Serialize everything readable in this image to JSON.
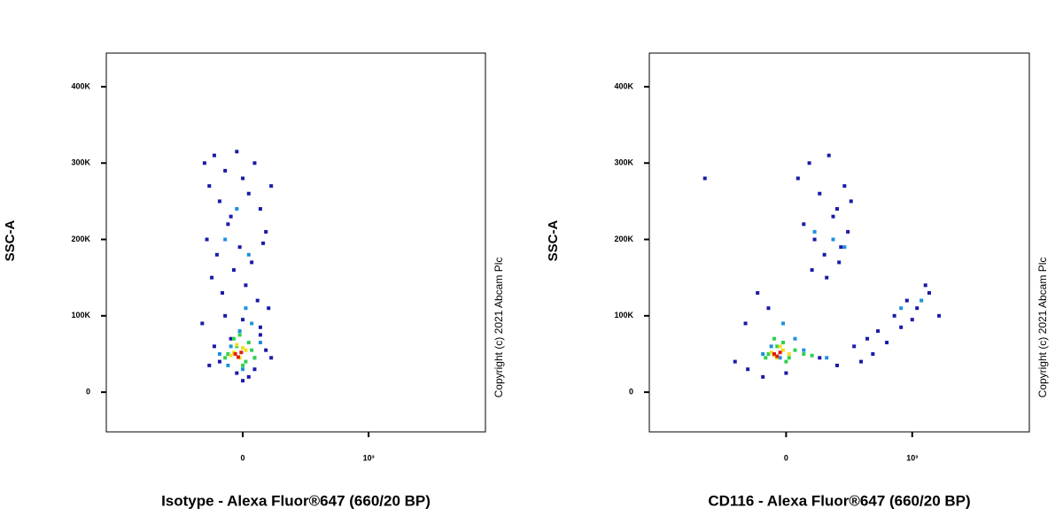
{
  "chart_data": [
    {
      "type": "scatter",
      "xlabel": "Isotype - Alexa Fluor®647 (660/20 BP)",
      "ylabel": "SSC-A",
      "annotation": "Copyright (c) 2021 Abcam Plc",
      "xscale": "asinh",
      "asinh_width": 170,
      "xlim": [
        -1235,
        10000
      ],
      "xticks": [
        0,
        {
          "value": 1000,
          "label": "10³"
        }
      ],
      "ylim": [
        -52000,
        444000
      ],
      "yticks": [
        0,
        {
          "value": 100000,
          "label": "100K"
        },
        {
          "value": 200000,
          "label": "200K"
        },
        {
          "value": 300000,
          "label": "300K"
        },
        {
          "value": 400000,
          "label": "400K"
        }
      ],
      "series": [
        {
          "color": "#1a1aa8",
          "x": [
            -140,
            -120,
            -100,
            -80,
            -60,
            -40,
            -20,
            0,
            20,
            40,
            60,
            80,
            100,
            -130,
            -90,
            -50,
            -10,
            30,
            70,
            -110,
            -70,
            -30,
            10,
            50,
            90,
            -150,
            -60,
            0,
            60,
            -100,
            40,
            -20,
            -80,
            20,
            80,
            -40,
            100,
            -120,
            0,
            60
          ],
          "y": [
            300000,
            270000,
            310000,
            250000,
            290000,
            230000,
            315000,
            280000,
            260000,
            300000,
            240000,
            210000,
            270000,
            200000,
            180000,
            220000,
            190000,
            170000,
            195000,
            150000,
            130000,
            160000,
            140000,
            120000,
            110000,
            90000,
            100000,
            95000,
            85000,
            60000,
            30000,
            25000,
            40000,
            20000,
            55000,
            70000,
            45000,
            35000,
            15000,
            75000
          ]
        },
        {
          "color": "#1e90e0",
          "x": [
            -60,
            -20,
            20,
            -40,
            0,
            40,
            -80,
            60,
            -10,
            30,
            -50,
            10
          ],
          "y": [
            200000,
            240000,
            180000,
            60000,
            30000,
            45000,
            50000,
            65000,
            80000,
            90000,
            35000,
            110000
          ]
        },
        {
          "color": "#30d050",
          "x": [
            -50,
            -20,
            10,
            -30,
            0,
            30,
            -60,
            20,
            -10,
            40
          ],
          "y": [
            50000,
            60000,
            40000,
            70000,
            35000,
            55000,
            45000,
            65000,
            75000,
            45000
          ]
        },
        {
          "color": "#f0e020",
          "x": [
            -30,
            -10,
            10,
            -20,
            0,
            -40
          ],
          "y": [
            52000,
            45000,
            55000,
            62000,
            58000,
            48000
          ]
        },
        {
          "color": "#e02010",
          "x": [
            -25,
            -5,
            -15
          ],
          "y": [
            50000,
            52000,
            46000
          ]
        }
      ]
    },
    {
      "type": "scatter",
      "xlabel": "CD116 - Alexa Fluor®647 (660/20 BP)",
      "ylabel": "SSC-A",
      "annotation": "Copyright (c) 2021 Abcam Plc",
      "xscale": "asinh",
      "asinh_width": 170,
      "xlim": [
        -1235,
        10000
      ],
      "xticks": [
        0,
        {
          "value": 1000,
          "label": "10³"
        }
      ],
      "ylim": [
        -52000,
        444000
      ],
      "yticks": [
        0,
        {
          "value": 100000,
          "label": "100K"
        },
        {
          "value": 200000,
          "label": "200K"
        },
        {
          "value": 300000,
          "label": "300K"
        },
        {
          "value": 400000,
          "label": "400K"
        }
      ],
      "series": [
        {
          "color": "#1a1aa8",
          "x": [
            40,
            80,
            120,
            160,
            200,
            240,
            280,
            60,
            100,
            140,
            180,
            220,
            260,
            90,
            150,
            210,
            -100,
            -150,
            -60,
            300,
            500,
            700,
            900,
            1100,
            1400,
            1700,
            400,
            600,
            800,
            1000,
            1300,
            350,
            450,
            -140,
            -80,
            0,
            120,
            200,
            -200,
            -400
          ],
          "y": [
            280000,
            300000,
            260000,
            310000,
            240000,
            270000,
            250000,
            220000,
            200000,
            180000,
            230000,
            190000,
            210000,
            160000,
            150000,
            170000,
            130000,
            90000,
            110000,
            60000,
            80000,
            100000,
            120000,
            110000,
            130000,
            100000,
            70000,
            65000,
            85000,
            95000,
            140000,
            40000,
            50000,
            30000,
            20000,
            25000,
            45000,
            35000,
            40000,
            280000
          ]
        },
        {
          "color": "#1e90e0",
          "x": [
            100,
            180,
            240,
            -50,
            -20,
            30,
            -80,
            60,
            150,
            800,
            1200,
            -10
          ],
          "y": [
            210000,
            200000,
            190000,
            60000,
            45000,
            70000,
            50000,
            55000,
            45000,
            110000,
            120000,
            90000
          ]
        },
        {
          "color": "#30d050",
          "x": [
            -60,
            -30,
            0,
            30,
            -40,
            10,
            60,
            -70,
            -10,
            90
          ],
          "y": [
            50000,
            60000,
            40000,
            55000,
            70000,
            45000,
            50000,
            45000,
            65000,
            48000
          ]
        },
        {
          "color": "#f0e020",
          "x": [
            -50,
            -30,
            -10,
            10,
            -20,
            -40
          ],
          "y": [
            52000,
            45000,
            55000,
            50000,
            60000,
            48000
          ]
        },
        {
          "color": "#e02010",
          "x": [
            -40,
            -30,
            -20
          ],
          "y": [
            50000,
            47000,
            52000
          ]
        }
      ]
    }
  ]
}
